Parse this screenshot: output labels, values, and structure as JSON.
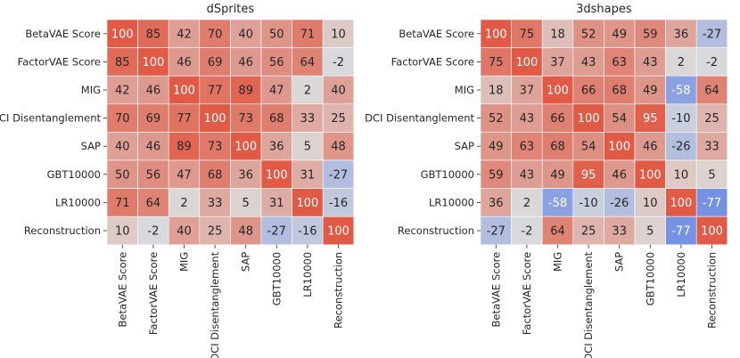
{
  "chart_data": [
    {
      "type": "heatmap",
      "title": "dSprites",
      "row_labels": [
        "BetaVAE Score",
        "FactorVAE Score",
        "MIG",
        "DCI Disentanglement",
        "SAP",
        "GBT10000",
        "LR10000",
        "Reconstruction"
      ],
      "col_labels": [
        "BetaVAE Score",
        "FactorVAE Score",
        "MIG",
        "DCI Disentanglement",
        "SAP",
        "GBT10000",
        "LR10000",
        "Reconstruction"
      ],
      "values": [
        [
          100,
          85,
          42,
          70,
          40,
          50,
          71,
          10
        ],
        [
          85,
          100,
          46,
          69,
          46,
          56,
          64,
          -2
        ],
        [
          42,
          46,
          100,
          77,
          89,
          47,
          2,
          40
        ],
        [
          70,
          69,
          77,
          100,
          73,
          68,
          33,
          25
        ],
        [
          40,
          46,
          89,
          73,
          100,
          36,
          5,
          48
        ],
        [
          50,
          56,
          47,
          68,
          36,
          100,
          31,
          -27
        ],
        [
          71,
          64,
          2,
          33,
          5,
          31,
          100,
          -16
        ],
        [
          10,
          -2,
          40,
          25,
          48,
          -27,
          -16,
          100
        ]
      ],
      "value_range": [
        -100,
        100
      ]
    },
    {
      "type": "heatmap",
      "title": "3dshapes",
      "row_labels": [
        "BetaVAE Score",
        "FactorVAE Score",
        "MIG",
        "DCI Disentanglement",
        "SAP",
        "GBT10000",
        "LR10000",
        "Reconstruction"
      ],
      "col_labels": [
        "BetaVAE Score",
        "FactorVAE Score",
        "MIG",
        "DCI Disentanglement",
        "SAP",
        "GBT10000",
        "LR10000",
        "Reconstruction"
      ],
      "values": [
        [
          100,
          75,
          18,
          52,
          49,
          59,
          36,
          -27
        ],
        [
          75,
          100,
          37,
          43,
          63,
          43,
          2,
          -2
        ],
        [
          18,
          37,
          100,
          66,
          68,
          49,
          -58,
          64
        ],
        [
          52,
          43,
          66,
          100,
          54,
          95,
          -10,
          25
        ],
        [
          49,
          63,
          68,
          54,
          100,
          46,
          -26,
          33
        ],
        [
          59,
          43,
          49,
          95,
          46,
          100,
          10,
          5
        ],
        [
          36,
          2,
          -58,
          -10,
          -26,
          10,
          100,
          -77
        ],
        [
          -27,
          -2,
          64,
          25,
          33,
          5,
          -77,
          100
        ]
      ],
      "value_range": [
        -100,
        100
      ]
    }
  ],
  "colors": {
    "neutral": "#dcdcdc",
    "positive_strong": "#e05a45",
    "negative_strong": "#5b7fe6",
    "text_dark": "#262626",
    "text_light": "#ffffff"
  }
}
